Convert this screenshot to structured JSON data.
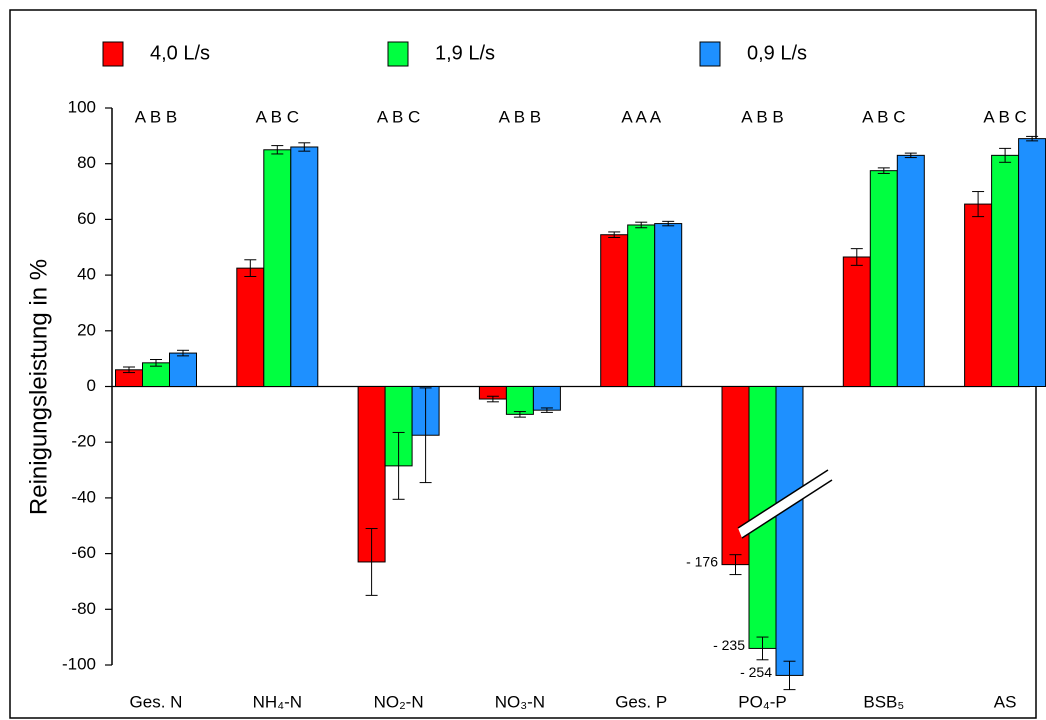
{
  "chart_data": {
    "type": "bar",
    "ylabel": "Reinigungsleistung in %",
    "categories": [
      "Ges. N",
      "NH₄-N",
      "NO₂-N",
      "NO₃-N",
      "Ges. P",
      "PO₄-P",
      "BSB₅",
      "AS"
    ],
    "annotations": [
      "A B B",
      "A B C",
      "A B C",
      "A B B",
      "A A A",
      "A B B",
      "A B C",
      "A B C"
    ],
    "series": [
      {
        "name": "4,0 L/s",
        "color": "#ff0000",
        "values": [
          6,
          42.5,
          -63,
          -4.5,
          54.5,
          -176,
          46.5,
          65.5
        ],
        "errors": [
          1,
          3,
          12,
          1,
          1,
          7,
          3,
          4.5
        ],
        "value_labels": [
          null,
          null,
          null,
          null,
          null,
          "- 176",
          null,
          null
        ]
      },
      {
        "name": "1,9 L/s",
        "color": "#00ff40",
        "values": [
          8.5,
          85,
          -28.5,
          -10,
          58,
          -235,
          77.5,
          83
        ],
        "errors": [
          1.2,
          1.5,
          12,
          1,
          1,
          8,
          1,
          2.5
        ],
        "value_labels": [
          null,
          null,
          null,
          null,
          null,
          "- 235",
          null,
          null
        ]
      },
      {
        "name": "0,9 L/s",
        "color": "#1e90ff",
        "values": [
          12,
          86,
          -17.5,
          -8.5,
          58.5,
          -254,
          83,
          89
        ],
        "errors": [
          1,
          1.5,
          17,
          0.8,
          0.8,
          10,
          0.8,
          0.8
        ],
        "value_labels": [
          null,
          null,
          null,
          null,
          null,
          "- 254",
          null,
          null
        ]
      }
    ],
    "ylim": [
      -100,
      100
    ],
    "yticks": [
      -100,
      -80,
      -60,
      -40,
      -20,
      0,
      20,
      40,
      60,
      80,
      100
    ],
    "axis_break": true
  }
}
